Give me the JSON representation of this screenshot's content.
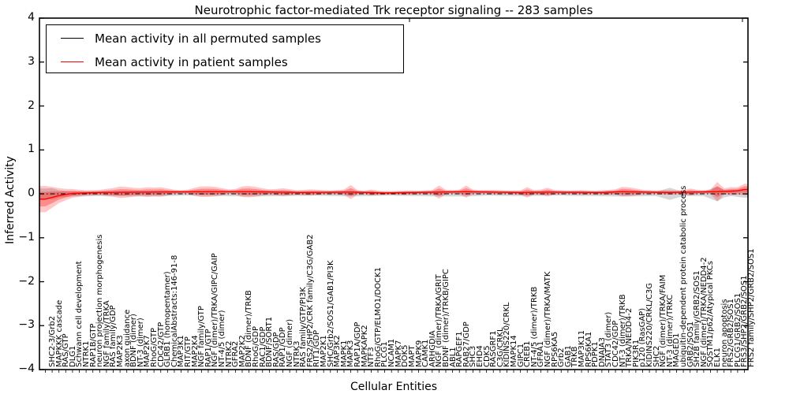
{
  "chart_data": {
    "type": "line",
    "title": "Neurotrophic factor-mediated Trk receptor signaling -- 283 samples",
    "xlabel": "Cellular Entities",
    "ylabel": "Inferred Activity",
    "ylim": [
      -4,
      4
    ],
    "yticks": [
      "4",
      "3",
      "2",
      "1",
      "0",
      "−1",
      "−2",
      "−3",
      "−4"
    ],
    "ytick_values": [
      4,
      3,
      2,
      1,
      0,
      -1,
      -2,
      -3,
      -4
    ],
    "grid": false,
    "legend_position": "upper-left",
    "colors": {
      "patient_line": "#ff0000",
      "permuted_line": "#000000",
      "patient_fill_outer": "rgba(255,0,0,0.22)",
      "patient_fill_inner": "rgba(255,0,0,0.30)",
      "permuted_fill": "rgba(0,0,0,0.16)",
      "frame": "#000000"
    },
    "series": [
      {
        "name": "Mean activity in all permuted samples",
        "color": "#000000",
        "style": "dash-dot",
        "mean_points": [
          [
            0,
            0.0
          ],
          [
            103,
            0.0
          ]
        ],
        "spread_points": [
          [
            0,
            0.12
          ],
          [
            1,
            0.13
          ],
          [
            2,
            0.08
          ],
          [
            4,
            0.06
          ],
          [
            8,
            0.05
          ],
          [
            15,
            0.06
          ],
          [
            20,
            0.04
          ],
          [
            25,
            0.05
          ],
          [
            30,
            0.06
          ],
          [
            35,
            0.05
          ],
          [
            40,
            0.04
          ],
          [
            45,
            0.06
          ],
          [
            50,
            0.04
          ],
          [
            55,
            0.05
          ],
          [
            58,
            0.06
          ],
          [
            62,
            0.06
          ],
          [
            65,
            0.04
          ],
          [
            70,
            0.05
          ],
          [
            75,
            0.04
          ],
          [
            80,
            0.05
          ],
          [
            85,
            0.06
          ],
          [
            90,
            0.05
          ],
          [
            92,
            0.14
          ],
          [
            94,
            0.05
          ],
          [
            97,
            0.05
          ],
          [
            99,
            0.17
          ],
          [
            100,
            0.08
          ],
          [
            101,
            0.05
          ],
          [
            103,
            0.09
          ]
        ]
      },
      {
        "name": "Mean activity in patient samples",
        "color": "#ff0000",
        "style": "solid",
        "mean_points": [
          [
            0,
            -0.12
          ],
          [
            1,
            -0.08
          ],
          [
            2,
            -0.04
          ],
          [
            4,
            0.01
          ],
          [
            8,
            0.03
          ],
          [
            15,
            0.04
          ],
          [
            24,
            0.05
          ],
          [
            30,
            0.05
          ],
          [
            38,
            0.03
          ],
          [
            45,
            0.04
          ],
          [
            50,
            0.02
          ],
          [
            58,
            0.04
          ],
          [
            62,
            0.05
          ],
          [
            70,
            0.03
          ],
          [
            74,
            0.04
          ],
          [
            82,
            0.03
          ],
          [
            85,
            0.05
          ],
          [
            92,
            0.03
          ],
          [
            95,
            0.04
          ],
          [
            99,
            0.05
          ],
          [
            102,
            0.07
          ],
          [
            103,
            0.1
          ]
        ],
        "spread_points": [
          [
            0,
            0.3
          ],
          [
            1,
            0.24
          ],
          [
            2,
            0.17
          ],
          [
            3,
            0.13
          ],
          [
            4,
            0.1
          ],
          [
            5,
            0.08
          ],
          [
            6,
            0.06
          ],
          [
            8,
            0.06
          ],
          [
            10,
            0.1
          ],
          [
            11,
            0.13
          ],
          [
            12,
            0.12
          ],
          [
            13,
            0.1
          ],
          [
            14,
            0.09
          ],
          [
            15,
            0.11
          ],
          [
            16,
            0.1
          ],
          [
            17,
            0.11
          ],
          [
            18,
            0.08
          ],
          [
            19,
            0.05
          ],
          [
            20,
            0.04
          ],
          [
            21,
            0.05
          ],
          [
            22,
            0.09
          ],
          [
            23,
            0.12
          ],
          [
            24,
            0.12
          ],
          [
            25,
            0.11
          ],
          [
            26,
            0.08
          ],
          [
            27,
            0.05
          ],
          [
            28,
            0.06
          ],
          [
            29,
            0.12
          ],
          [
            30,
            0.13
          ],
          [
            31,
            0.11
          ],
          [
            32,
            0.08
          ],
          [
            33,
            0.06
          ],
          [
            34,
            0.07
          ],
          [
            35,
            0.09
          ],
          [
            36,
            0.07
          ],
          [
            37,
            0.05
          ],
          [
            38,
            0.06
          ],
          [
            39,
            0.07
          ],
          [
            40,
            0.06
          ],
          [
            41,
            0.05
          ],
          [
            42,
            0.04
          ],
          [
            43,
            0.05
          ],
          [
            44,
            0.06
          ],
          [
            45,
            0.16
          ],
          [
            46,
            0.05
          ],
          [
            47,
            0.04
          ],
          [
            48,
            0.07
          ],
          [
            49,
            0.05
          ],
          [
            51,
            0.04
          ],
          [
            53,
            0.05
          ],
          [
            55,
            0.04
          ],
          [
            57,
            0.05
          ],
          [
            58,
            0.15
          ],
          [
            59,
            0.05
          ],
          [
            60,
            0.04
          ],
          [
            61,
            0.05
          ],
          [
            62,
            0.14
          ],
          [
            63,
            0.05
          ],
          [
            64,
            0.04
          ],
          [
            66,
            0.05
          ],
          [
            68,
            0.04
          ],
          [
            70,
            0.05
          ],
          [
            71,
            0.12
          ],
          [
            72,
            0.05
          ],
          [
            73,
            0.06
          ],
          [
            74,
            0.1
          ],
          [
            75,
            0.05
          ],
          [
            77,
            0.04
          ],
          [
            79,
            0.05
          ],
          [
            81,
            0.04
          ],
          [
            82,
            0.05
          ],
          [
            84,
            0.06
          ],
          [
            85,
            0.11
          ],
          [
            86,
            0.1
          ],
          [
            87,
            0.08
          ],
          [
            88,
            0.05
          ],
          [
            90,
            0.04
          ],
          [
            91,
            0.05
          ],
          [
            92,
            0.05
          ],
          [
            93,
            0.04
          ],
          [
            94,
            0.05
          ],
          [
            95,
            0.08
          ],
          [
            96,
            0.05
          ],
          [
            97,
            0.04
          ],
          [
            98,
            0.05
          ],
          [
            99,
            0.22
          ],
          [
            100,
            0.07
          ],
          [
            101,
            0.09
          ],
          [
            102,
            0.08
          ],
          [
            103,
            0.13
          ]
        ]
      }
    ],
    "categories": [
      "SHC2-3/Grb2",
      "MAPKKK cascade",
      "RAS/GTP",
      "DLG1",
      "Schwann cell development",
      "NTRK1",
      "RAP1B/GTP",
      "neuron projection morphogenesis",
      "NGF family/TRKA",
      "RAS family/GDP",
      "MAP2K3",
      "axon guidance",
      "BDNF (dimer)",
      "NT-3 (dimer)",
      "MAP2K7",
      "RhoG/GTP",
      "CDC42/GTP",
      "GLRB1 (homopentamer)",
      "ChemicalAbstracts:146-91-8",
      "MAP3K1",
      "RIT/GTP",
      "MAP2K4",
      "NGF family/GTP",
      "RAP1/GTP",
      "NGF (dimer)/TRKA/GIPC/GAIP",
      "NT-4/5 (dimer)",
      "NTRK2",
      "GFRA2",
      "MAP2K2",
      "BDNF (dimer)/TRKB",
      "RhoG/GDP",
      "RAC1/GDP",
      "BDNF/SORT1",
      "RAS/GDP",
      "RAP1/GDP",
      "NGF (dimer)",
      "NTRK3",
      "RAS family/GTP/PI3K",
      "FRS2/SHP2/CRK family/C3G/GAB2",
      "RIT1/GDP",
      "MAP2K1",
      "SHC/Grb2/SOS1/GAB1/PI3K",
      "MAP3K2",
      "MAPK1",
      "MAPK3",
      "RAP1A/GDP",
      "MAPKAPK2",
      "NTF3",
      "RhoG/GTP/ELMO1/DOCK1",
      "PLCG1",
      "NCAM1",
      "MAPK7",
      "DOK5",
      "MAPT",
      "MAPK9",
      "CAMK1",
      "ARHGDIA",
      "NGF (dimer)/TRKA/GRIT",
      "BDNF (dimer)/TRKB/GIPC",
      "ABL1",
      "RAPGEF1",
      "RAB27/GDP",
      "SHC3",
      "EHD4",
      "CDK5",
      "RASGRF1",
      "C3G/CRKL",
      "KIDINS220/CRKL",
      "MAPK14",
      "GIPC1",
      "CREB1",
      "NT-4/5 (dimer)/TRKB",
      "GFRA1",
      "NGF (dimer)/TRKA/MATK",
      "RPS6KA5",
      "Grb2",
      "GAB1",
      "TRKB",
      "MAP3K11",
      "RPS6KA1",
      "PDPK1",
      "DNAJA3",
      "STAT3 (dimer)",
      "CDC42/GDP",
      "NT-3 (dimer)/TRKB",
      "TRKA/NEDD4-2",
      "PIK3R1",
      "p120 (RasGAP)",
      "KIDINS220/CRKL/C3G",
      "SHC2",
      "NGF (dimer)/TRKA/FAIM",
      "NT-3 (dimer)/TRKC",
      "MAGED1",
      "ubiquitin-dependent protein catabolic process",
      "GRB2/SOS1",
      "SH2B family/GRB2/SOS1",
      "NGF (dimer)/TRKA/NEDD4-2",
      "SQSTM1/p62/Atypical PKCs",
      "ELK1",
      "neuron apoptosis",
      "FRS2/GRB2/SOS1",
      "PLCG1/GRB2/SOS1",
      "FRS3/SHP2/GRB2/SOS1",
      "FRS2 family/SHP2/GRB2/SOS1"
    ]
  }
}
